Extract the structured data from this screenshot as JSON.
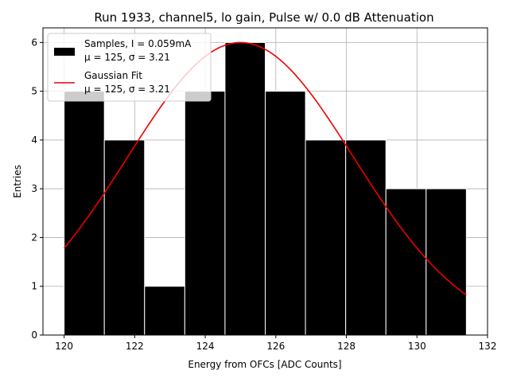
{
  "chart_data": {
    "type": "bar",
    "title": "Run 1933, channel5, lo gain, Pulse w/ 0.0 dB Attenuation",
    "xlabel": "Energy from OFCs [ADC Counts]",
    "ylabel": "Entries",
    "xlim": [
      119.4,
      132
    ],
    "ylim": [
      0,
      6.3
    ],
    "xticks": [
      120,
      122,
      124,
      126,
      128,
      130,
      132
    ],
    "yticks": [
      0,
      1,
      2,
      3,
      4,
      5,
      6
    ],
    "grid": true,
    "legend_position": "top-left",
    "histogram": {
      "name": "Samples, I = 0.059mA",
      "stats": "μ = 125, σ = 3.21",
      "color": "#000000",
      "edge_color": "#ffffff",
      "bin_edges": [
        120.0,
        121.14,
        122.28,
        123.42,
        124.56,
        125.7,
        126.84,
        127.98,
        129.12,
        130.26,
        131.4
      ],
      "counts": [
        5,
        4,
        1,
        5,
        6,
        5,
        4,
        4,
        3,
        3
      ]
    },
    "fit": {
      "name": "Gaussian Fit",
      "stats": "μ = 125, σ = 3.21",
      "color": "#ee0000",
      "mu": 125,
      "sigma": 3.21,
      "amplitude": 6,
      "x_range": [
        120.0,
        131.4
      ]
    }
  }
}
